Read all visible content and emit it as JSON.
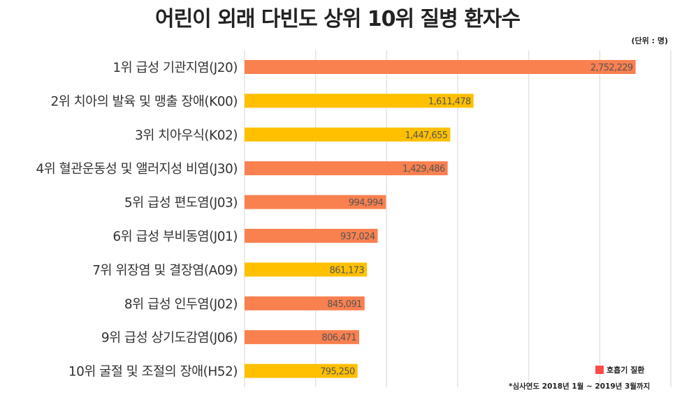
{
  "chart_data": {
    "type": "bar",
    "orientation": "horizontal",
    "title": "어린이 외래 다빈도 상위 10위 질병 환자수",
    "unit_label": "(단위 : 명)",
    "categories": [
      "1위 급성 기관지염(J20)",
      "2위 치아의 발육 및 맹출 장애(K00)",
      "3위 치아우식(K02)",
      "4위 혈관운동성 및 앨러지성 비염(J30)",
      "5위 급성 편도염(J03)",
      "6위 급성 부비동염(J01)",
      "7위 위장염 및 결장염(A09)",
      "8위 급성 인두염(J02)",
      "9위 급성 상기도감염(J06)",
      "10위 굴절 및 조절의 장애(H52)"
    ],
    "values": [
      2752229,
      1611478,
      1447655,
      1429486,
      994994,
      937024,
      861173,
      845091,
      806471,
      795250
    ],
    "value_labels": [
      "2,752,229",
      "1,611,478",
      "1,447,655",
      "1,429,486",
      "994,994",
      "937,024",
      "861,173",
      "845,091",
      "806,471",
      "795,250"
    ],
    "respiratory": [
      true,
      false,
      false,
      true,
      true,
      true,
      false,
      true,
      true,
      false
    ],
    "xlim": [
      0,
      3000000
    ],
    "grid_step": 500000,
    "grid": true,
    "legend": {
      "label": "호흡기 질환",
      "placement": "bottom-right"
    },
    "footnote": "*심사연도 2018년 1월 ~ 2019년 3월까지",
    "colors": {
      "respiratory": "#F9804F",
      "other": "#FFC000",
      "legend": "#FF4B4B",
      "grid": "#E3E3E3"
    }
  }
}
